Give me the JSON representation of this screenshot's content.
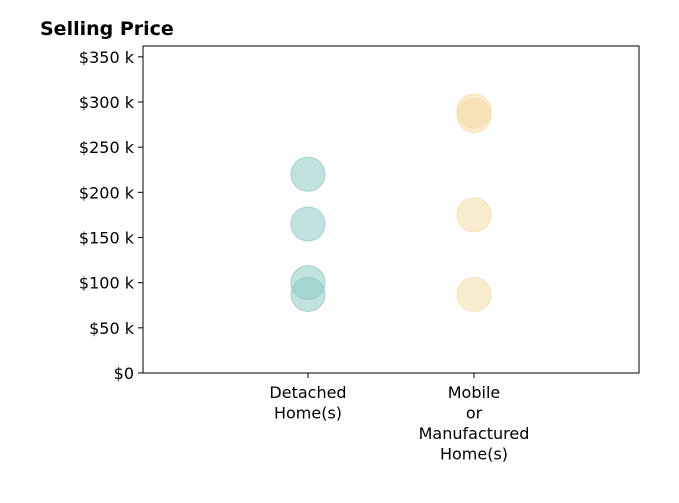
{
  "chart_data": {
    "type": "scatter",
    "title": "Selling Price",
    "xlabel": "",
    "ylabel": "",
    "ylim": [
      0,
      362000
    ],
    "yticks": [
      {
        "value": 0,
        "label": "$0"
      },
      {
        "value": 50000,
        "label": "$50 k"
      },
      {
        "value": 100000,
        "label": "$100 k"
      },
      {
        "value": 150000,
        "label": "$150 k"
      },
      {
        "value": 200000,
        "label": "$200 k"
      },
      {
        "value": 250000,
        "label": "$250 k"
      },
      {
        "value": 300000,
        "label": "$300 k"
      },
      {
        "value": 350000,
        "label": "$350 k"
      }
    ],
    "categories": [
      {
        "lines": [
          "Detached",
          "Home(s)"
        ]
      },
      {
        "lines": [
          "Mobile",
          "or",
          "Manufactured",
          "Home(s)"
        ]
      }
    ],
    "series": [
      {
        "category": 0,
        "color": "#8ecbc4",
        "values": [
          220000,
          165000,
          100000,
          87000
        ]
      },
      {
        "category": 1,
        "color": "#f5dca8",
        "values": [
          290000,
          285000,
          175000,
          87000
        ]
      }
    ],
    "grid": false,
    "legend": "none"
  }
}
